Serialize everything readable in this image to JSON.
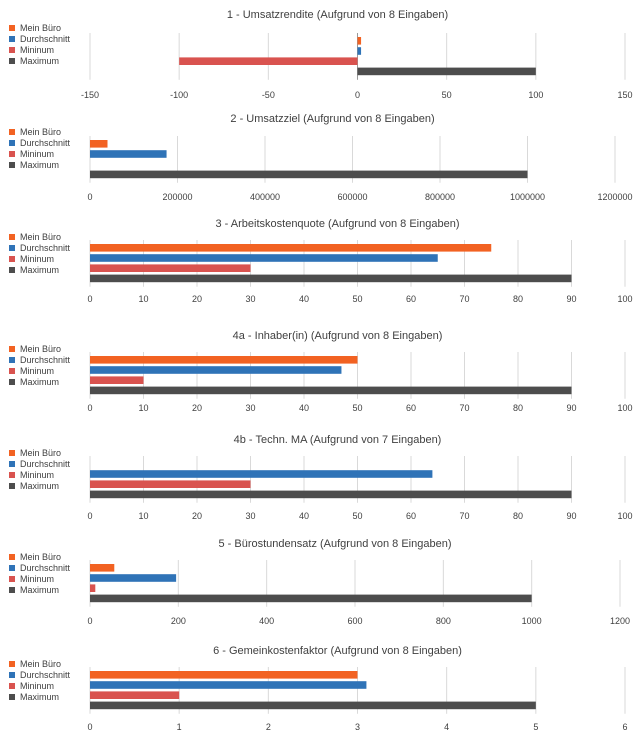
{
  "legend": {
    "labels": [
      "Mein Büro",
      "Durchschnitt",
      "Mininum",
      "Maximum"
    ],
    "colors": [
      "#f26222",
      "#2f73b7",
      "#d9534f",
      "#4d4d4d"
    ]
  },
  "chart_data": [
    {
      "type": "bar",
      "orientation": "horizontal",
      "title": "1 - Umsatzrendite (Aufgrund von 8 Eingaben)",
      "series": [
        {
          "name": "Mein Büro",
          "value": 2
        },
        {
          "name": "Durchschnitt",
          "value": 2
        },
        {
          "name": "Mininum",
          "value": -100
        },
        {
          "name": "Maximum",
          "value": 100
        }
      ],
      "xlim": [
        -150,
        150
      ],
      "ticks": [
        -150,
        -100,
        -50,
        0,
        50,
        100,
        150
      ],
      "grid": true,
      "legend_position": "left"
    },
    {
      "type": "bar",
      "orientation": "horizontal",
      "title": "2 - Umsatzziel (Aufgrund von 8 Eingaben)",
      "series": [
        {
          "name": "Mein Büro",
          "value": 40000
        },
        {
          "name": "Durchschnitt",
          "value": 175000
        },
        {
          "name": "Mininum",
          "value": 0
        },
        {
          "name": "Maximum",
          "value": 1000000
        }
      ],
      "xlim": [
        0,
        1200000
      ],
      "ticks": [
        0,
        200000,
        400000,
        600000,
        800000,
        1000000,
        1200000
      ],
      "grid": true,
      "legend_position": "left"
    },
    {
      "type": "bar",
      "orientation": "horizontal",
      "title": "3 - Arbeitskostenquote (Aufgrund von 8 Eingaben)",
      "series": [
        {
          "name": "Mein Büro",
          "value": 75
        },
        {
          "name": "Durchschnitt",
          "value": 65
        },
        {
          "name": "Mininum",
          "value": 30
        },
        {
          "name": "Maximum",
          "value": 90
        }
      ],
      "xlim": [
        0,
        100
      ],
      "ticks": [
        0,
        10,
        20,
        30,
        40,
        50,
        60,
        70,
        80,
        90,
        100
      ],
      "grid": true,
      "legend_position": "left"
    },
    {
      "type": "bar",
      "orientation": "horizontal",
      "title": "4a - Inhaber(in) (Aufgrund von 8 Eingaben)",
      "series": [
        {
          "name": "Mein Büro",
          "value": 50
        },
        {
          "name": "Durchschnitt",
          "value": 47
        },
        {
          "name": "Mininum",
          "value": 10
        },
        {
          "name": "Maximum",
          "value": 90
        }
      ],
      "xlim": [
        0,
        100
      ],
      "ticks": [
        0,
        10,
        20,
        30,
        40,
        50,
        60,
        70,
        80,
        90,
        100
      ],
      "grid": true,
      "legend_position": "left"
    },
    {
      "type": "bar",
      "orientation": "horizontal",
      "title": "4b - Techn. MA (Aufgrund von 7 Eingaben)",
      "series": [
        {
          "name": "Mein Büro",
          "value": 0
        },
        {
          "name": "Durchschnitt",
          "value": 64
        },
        {
          "name": "Mininum",
          "value": 30
        },
        {
          "name": "Maximum",
          "value": 90
        }
      ],
      "xlim": [
        0,
        100
      ],
      "ticks": [
        0,
        10,
        20,
        30,
        40,
        50,
        60,
        70,
        80,
        90,
        100
      ],
      "grid": true,
      "legend_position": "left"
    },
    {
      "type": "bar",
      "orientation": "horizontal",
      "title": "5 - Bürostundensatz (Aufgrund von 8 Eingaben)",
      "series": [
        {
          "name": "Mein Büro",
          "value": 55
        },
        {
          "name": "Durchschnitt",
          "value": 195
        },
        {
          "name": "Mininum",
          "value": 12
        },
        {
          "name": "Maximum",
          "value": 1000
        }
      ],
      "xlim": [
        0,
        1200
      ],
      "ticks": [
        0,
        200,
        400,
        600,
        800,
        1000,
        1200
      ],
      "grid": true,
      "legend_position": "left"
    },
    {
      "type": "bar",
      "orientation": "horizontal",
      "title": "6 - Gemeinkostenfaktor (Aufgrund von 8 Eingaben)",
      "series": [
        {
          "name": "Mein Büro",
          "value": 3
        },
        {
          "name": "Durchschnitt",
          "value": 3.1
        },
        {
          "name": "Mininum",
          "value": 1
        },
        {
          "name": "Maximum",
          "value": 5
        }
      ],
      "xlim": [
        0,
        6
      ],
      "ticks": [
        0,
        1,
        2,
        3,
        4,
        5,
        6
      ],
      "grid": true,
      "legend_position": "left"
    }
  ]
}
